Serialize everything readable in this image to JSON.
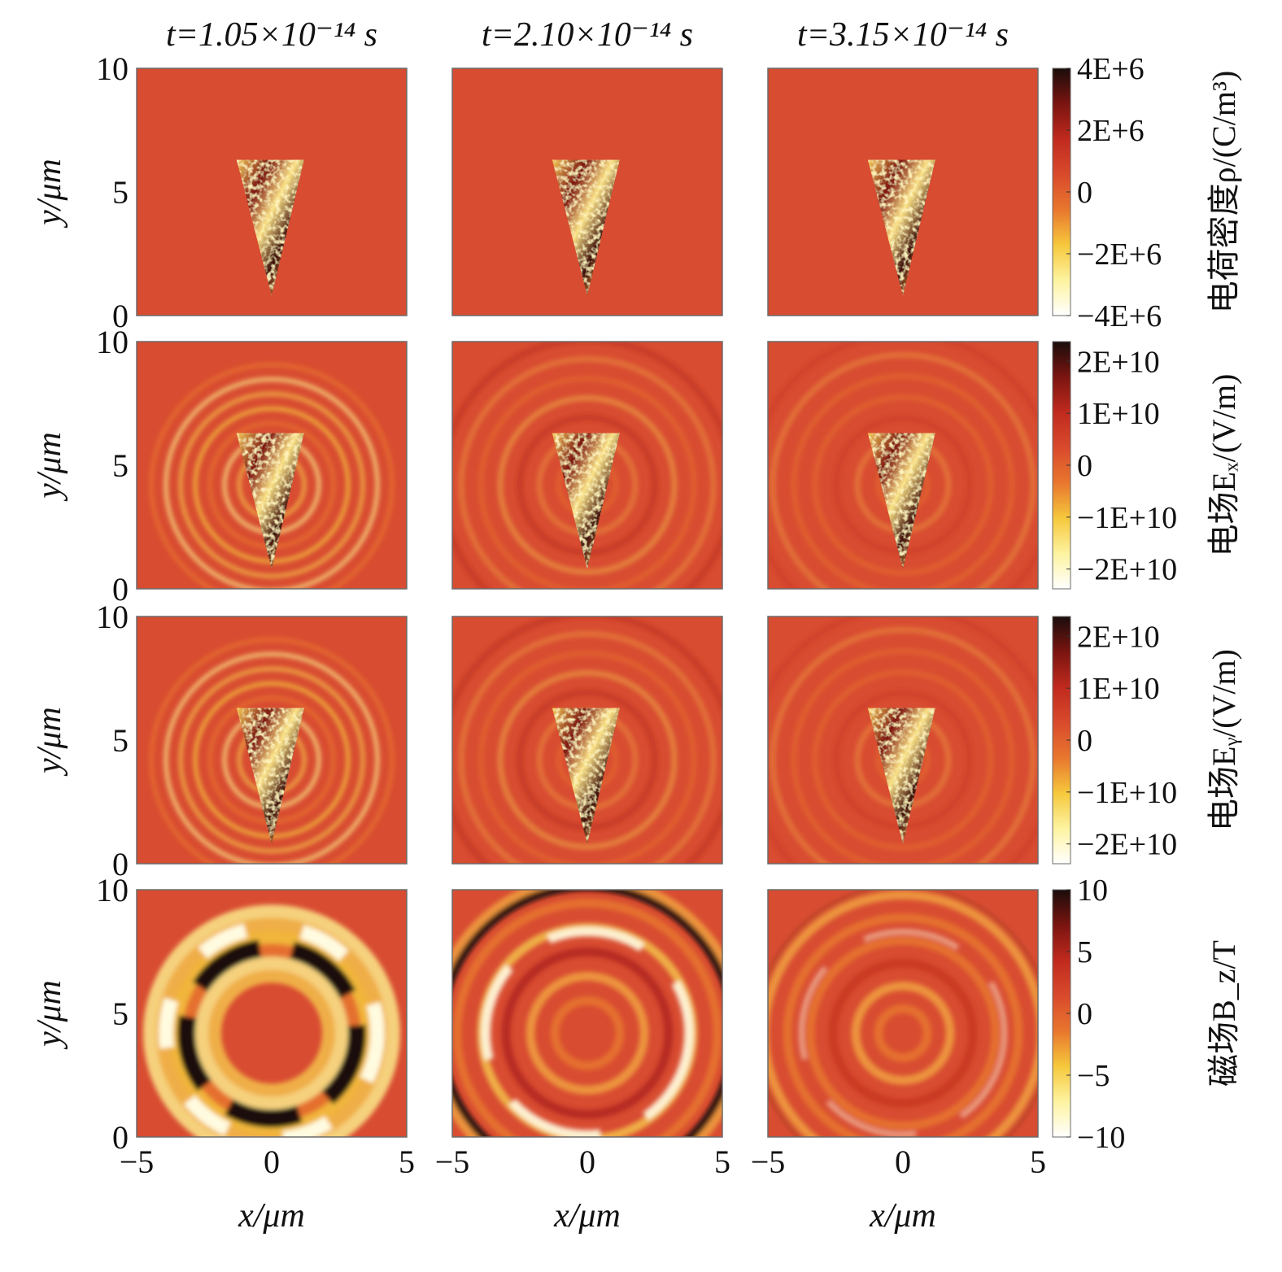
{
  "chart_data": {
    "type": "heatmap",
    "time_titles": [
      "t=1.05×10⁻¹⁴ s",
      "t=2.10×10⁻¹⁴ s",
      "t=3.15×10⁻¹⁴ s"
    ],
    "x_label": "x/μm",
    "y_label": "y/μm",
    "xlim": [
      -5,
      5
    ],
    "ylim": [
      0,
      10
    ],
    "x_ticks": [
      "−5",
      "0",
      "5"
    ],
    "y_ticks": [
      "0",
      "5",
      "10"
    ],
    "colormap": [
      "#ffffff",
      "#fdf3a0",
      "#f6c83c",
      "#e8762e",
      "#d94a2c",
      "#c02a1e",
      "#7a1410",
      "#1a0d0b"
    ],
    "background_color": "#d84c31",
    "rows": [
      {
        "quantity": "charge density",
        "colorbar_label": "电荷密度ρ/(C/m³)",
        "colorbar_ticks": [
          "4E+6",
          "2E+6",
          "0",
          "−2E+6",
          "−4E+6"
        ],
        "clim": [
          -4000000,
          4000000
        ],
        "pattern": "cone"
      },
      {
        "quantity": "electric field Ex",
        "colorbar_label": "电场Eₓ/(V/m)",
        "colorbar_ticks": [
          "2E+10",
          "1E+10",
          "0",
          "−1E+10",
          "−2E+10"
        ],
        "clim": [
          -20000000000,
          20000000000
        ],
        "pattern": "cone+rings"
      },
      {
        "quantity": "electric field Ey",
        "colorbar_label": "电场Eᵧ/(V/m)",
        "colorbar_ticks": [
          "2E+10",
          "1E+10",
          "0",
          "−1E+10",
          "−2E+10"
        ],
        "clim": [
          -20000000000,
          20000000000
        ],
        "pattern": "cone+rings"
      },
      {
        "quantity": "magnetic field Bz",
        "colorbar_label": "磁场B_z/T",
        "colorbar_ticks": [
          "10",
          "5",
          "0",
          "−5",
          "−10"
        ],
        "clim": [
          -10,
          10
        ],
        "pattern": "rings"
      }
    ]
  }
}
